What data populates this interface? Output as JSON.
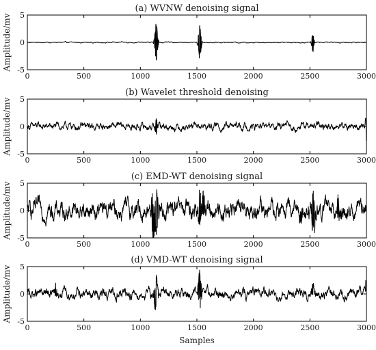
{
  "chart_data": {
    "type": "line",
    "x_label": "Samples",
    "panels": [
      {
        "title": "(a) WVNW denoising signal",
        "ylabel": "Amplitude/mv",
        "xlim": [
          0,
          3000
        ],
        "ylim": [
          -5,
          5
        ],
        "x_ticks": [
          "0",
          "500",
          "1000",
          "1500",
          "2000",
          "2500",
          "3000"
        ],
        "y_ticks": [
          "5",
          "0",
          "-5"
        ],
        "baseline_noise": 0.05,
        "bursts": [
          {
            "center": 1140,
            "amplitude": 3.8,
            "width": 10
          },
          {
            "center": 1525,
            "amplitude": 3.2,
            "width": 10
          },
          {
            "center": 2525,
            "amplitude": 1.8,
            "width": 8
          }
        ]
      },
      {
        "title": "(b) Wavelet threshold denoising",
        "ylabel": "Amplitude/mv",
        "xlim": [
          0,
          3000
        ],
        "ylim": [
          -5,
          5
        ],
        "x_ticks": [
          "0",
          "500",
          "1000",
          "1500",
          "2000",
          "2500",
          "3000"
        ],
        "y_ticks": [
          "5",
          "0",
          "-5"
        ],
        "baseline_noise": 0.35,
        "bursts": [
          {
            "center": 1140,
            "amplitude": 1.6,
            "width": 6
          },
          {
            "center": 2995,
            "amplitude": 2.5,
            "width": 5
          }
        ]
      },
      {
        "title": "(c) EMD-WT denoising signal",
        "ylabel": "Amplitude/mv",
        "xlim": [
          0,
          3000
        ],
        "ylim": [
          -5,
          5
        ],
        "x_ticks": [
          "0",
          "500",
          "1000",
          "1500",
          "2000",
          "2500",
          "3000"
        ],
        "y_ticks": [
          "5",
          "0",
          "-5"
        ],
        "baseline_noise": 0.9,
        "bursts": [
          {
            "center": 1110,
            "amplitude": 4.8,
            "width": 10
          },
          {
            "center": 1140,
            "amplitude": 4.5,
            "width": 12
          },
          {
            "center": 1525,
            "amplitude": 3.5,
            "width": 10
          },
          {
            "center": 1560,
            "amplitude": 3.0,
            "width": 8
          },
          {
            "center": 2530,
            "amplitude": 4.5,
            "width": 10
          },
          {
            "center": 2750,
            "amplitude": 2.5,
            "width": 8
          },
          {
            "center": 2420,
            "amplitude": 1.5,
            "width": 8
          }
        ]
      },
      {
        "title": "(d) VMD-WT denoising signal",
        "ylabel": "Amplitude/mv",
        "xlim": [
          0,
          3000
        ],
        "ylim": [
          -5,
          5
        ],
        "x_ticks": [
          "0",
          "500",
          "1000",
          "1500",
          "2000",
          "2500",
          "3000"
        ],
        "y_ticks": [
          "5",
          "0",
          "-5"
        ],
        "baseline_noise": 0.5,
        "bursts": [
          {
            "center": 1140,
            "amplitude": 3.5,
            "width": 12
          },
          {
            "center": 1525,
            "amplitude": 3.5,
            "width": 10
          },
          {
            "center": 250,
            "amplitude": 1.1,
            "width": 6
          },
          {
            "center": 2525,
            "amplitude": 1.0,
            "width": 8
          },
          {
            "center": 2995,
            "amplitude": 1.5,
            "width": 4
          }
        ]
      }
    ]
  }
}
